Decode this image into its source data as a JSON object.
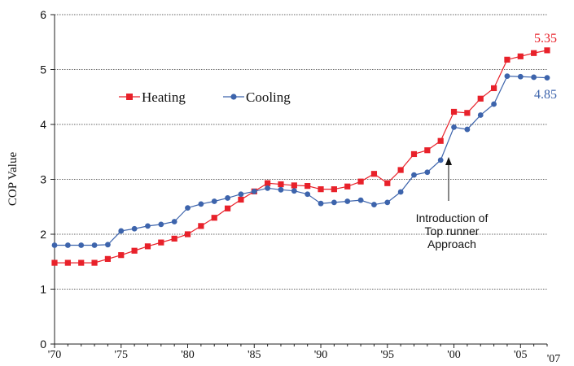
{
  "chart_data": {
    "type": "line",
    "ylabel": "COP Value",
    "ylim": [
      0,
      6
    ],
    "xlim": [
      1970,
      2007
    ],
    "y_ticks": [
      "0",
      "1",
      "2",
      "3",
      "4",
      "5",
      "6"
    ],
    "x_ticks": [
      "'70",
      "'75",
      "'80",
      "'85",
      "'90",
      "'95",
      "'00",
      "'05",
      "'07"
    ],
    "grid": "horizontal dotted",
    "legend_position": "top-left",
    "x": [
      1970,
      1971,
      1972,
      1973,
      1974,
      1975,
      1976,
      1977,
      1978,
      1979,
      1980,
      1981,
      1982,
      1983,
      1984,
      1985,
      1986,
      1987,
      1988,
      1989,
      1990,
      1991,
      1992,
      1993,
      1994,
      1995,
      1996,
      1997,
      1998,
      1999,
      2000,
      2001,
      2002,
      2003,
      2004,
      2005,
      2006,
      2007
    ],
    "series": [
      {
        "name": "Heating",
        "color": "#e8212a",
        "marker": "square",
        "values": [
          1.48,
          1.48,
          1.48,
          1.48,
          1.55,
          1.62,
          1.7,
          1.78,
          1.85,
          1.92,
          2.0,
          2.15,
          2.3,
          2.47,
          2.63,
          2.78,
          2.93,
          2.91,
          2.89,
          2.88,
          2.82,
          2.82,
          2.87,
          2.96,
          3.1,
          2.93,
          3.17,
          3.46,
          3.53,
          3.7,
          4.23,
          4.21,
          4.47,
          4.66,
          5.18,
          5.24,
          5.3,
          5.35
        ],
        "end_label": "5.35"
      },
      {
        "name": "Cooling",
        "color": "#3d64ac",
        "marker": "circle",
        "values": [
          1.8,
          1.8,
          1.8,
          1.8,
          1.81,
          2.06,
          2.1,
          2.15,
          2.18,
          2.23,
          2.48,
          2.55,
          2.6,
          2.66,
          2.73,
          2.78,
          2.84,
          2.81,
          2.79,
          2.73,
          2.56,
          2.58,
          2.6,
          2.62,
          2.54,
          2.58,
          2.77,
          3.08,
          3.13,
          3.35,
          3.95,
          3.91,
          4.17,
          4.37,
          4.88,
          4.87,
          4.86,
          4.85
        ],
        "end_label": "4.85"
      }
    ],
    "annotation": {
      "text": "Introduction of Top runner Approach",
      "lines": [
        "Introduction of",
        "Top runner",
        "Approach"
      ],
      "x": 1999,
      "y": 3.3
    }
  }
}
